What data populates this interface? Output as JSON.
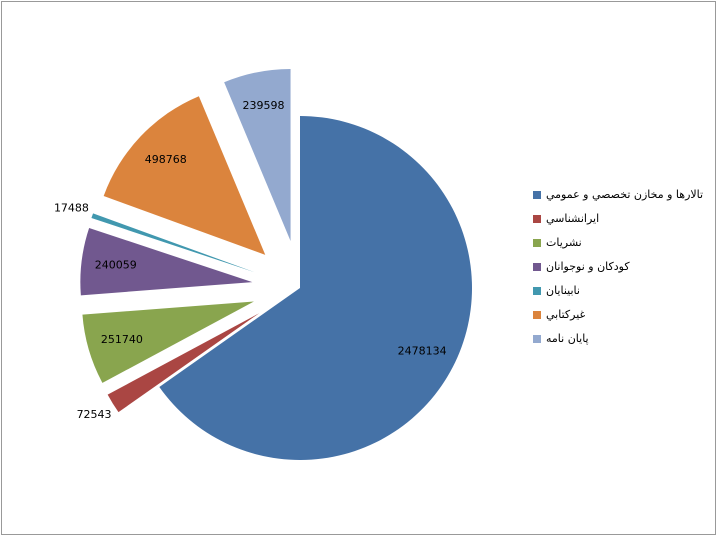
{
  "chart_data": {
    "type": "pie",
    "categories": [
      "تالارها و مخازن تخصصي و عمومي",
      "ايرانشناسي",
      "نشريات",
      "كودكان و نوجوانان",
      "نابينايان",
      "غيركتابي",
      "پايان نامه"
    ],
    "values": [
      2478134,
      72543,
      251740,
      240059,
      17488,
      498768,
      239598
    ],
    "colors": [
      "#4572a7",
      "#aa4643",
      "#89a54e",
      "#71588f",
      "#4198af",
      "#db843d",
      "#93a9cf"
    ],
    "legend": "right"
  }
}
